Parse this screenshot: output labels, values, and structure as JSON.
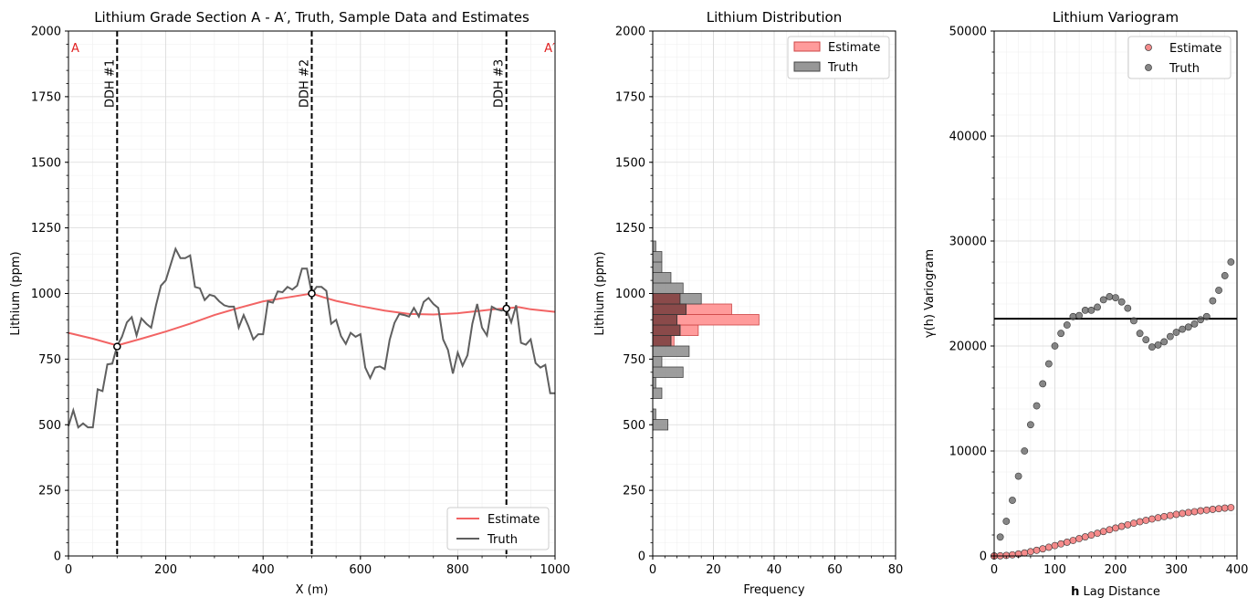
{
  "colors": {
    "estimate": "#f26464",
    "truth": "#5f5f5f",
    "estimate_hist": "#ff9b9b",
    "truth_hist": "#8c8c8c",
    "drill": "#000000",
    "section_label": "#e02020"
  },
  "chart_data": [
    {
      "type": "line",
      "title": "Lithium Grade Section A - A′, Truth, Sample Data and Estimates",
      "xlabel": "X (m)",
      "ylabel": "Lithium (ppm)",
      "xlim": [
        0,
        1000
      ],
      "ylim": [
        0,
        2000
      ],
      "xticks": [
        "0",
        "200",
        "400",
        "600",
        "800",
        "1000"
      ],
      "yticks": [
        "0",
        "250",
        "500",
        "750",
        "1000",
        "1250",
        "1500",
        "1750",
        "2000"
      ],
      "section_labels": {
        "left": "A",
        "right": "A′"
      },
      "legend": {
        "position": "lower right",
        "entries": [
          "Estimate",
          "Truth"
        ]
      },
      "drillholes": [
        {
          "label": "DDH #1",
          "x": 100,
          "sample": 798
        },
        {
          "label": "DDH #2",
          "x": 500,
          "sample": 1000
        },
        {
          "label": "DDH #3",
          "x": 900,
          "sample": 943
        }
      ],
      "series": [
        {
          "name": "Estimate",
          "x": [
            0,
            50,
            100,
            150,
            200,
            250,
            300,
            350,
            400,
            450,
            500,
            525,
            550,
            600,
            650,
            700,
            750,
            800,
            850,
            875,
            900,
            925,
            950,
            1000
          ],
          "y": [
            850,
            828,
            802,
            828,
            855,
            885,
            918,
            945,
            970,
            985,
            1000,
            985,
            972,
            952,
            935,
            922,
            920,
            925,
            935,
            940,
            943,
            948,
            940,
            930
          ]
        },
        {
          "name": "Truth",
          "x": [
            0,
            10,
            20,
            30,
            40,
            50,
            60,
            70,
            80,
            90,
            100,
            110,
            120,
            130,
            140,
            150,
            160,
            170,
            180,
            190,
            200,
            210,
            220,
            230,
            240,
            250,
            260,
            270,
            280,
            290,
            300,
            310,
            320,
            330,
            340,
            350,
            360,
            370,
            380,
            390,
            400,
            410,
            420,
            430,
            440,
            450,
            460,
            470,
            480,
            490,
            500,
            510,
            520,
            530,
            540,
            550,
            560,
            570,
            580,
            590,
            600,
            610,
            620,
            630,
            640,
            650,
            660,
            670,
            680,
            690,
            700,
            710,
            720,
            730,
            740,
            750,
            760,
            770,
            780,
            790,
            800,
            810,
            820,
            830,
            840,
            850,
            860,
            870,
            880,
            890,
            900,
            910,
            920,
            930,
            940,
            950,
            960,
            970,
            980,
            990,
            1000
          ],
          "y": [
            495,
            555,
            490,
            505,
            490,
            490,
            635,
            628,
            730,
            733,
            800,
            835,
            890,
            910,
            840,
            905,
            885,
            870,
            955,
            1030,
            1050,
            1110,
            1170,
            1135,
            1135,
            1145,
            1025,
            1020,
            975,
            995,
            990,
            970,
            955,
            950,
            950,
            870,
            918,
            875,
            825,
            845,
            845,
            970,
            965,
            1008,
            1005,
            1025,
            1015,
            1030,
            1095,
            1095,
            1000,
            1025,
            1025,
            1010,
            885,
            900,
            838,
            808,
            850,
            835,
            845,
            718,
            678,
            718,
            722,
            712,
            823,
            888,
            922,
            918,
            912,
            945,
            912,
            968,
            983,
            960,
            945,
            825,
            785,
            695,
            775,
            725,
            765,
            885,
            960,
            870,
            840,
            950,
            940,
            935,
            940,
            890,
            955,
            812,
            805,
            825,
            735,
            718,
            728,
            620,
            620
          ]
        }
      ]
    },
    {
      "type": "bar",
      "orientation": "horizontal",
      "title": "Lithium Distribution",
      "xlabel": "Frequency",
      "ylabel": "Lithium (ppm)",
      "xlim": [
        0,
        80
      ],
      "ylim": [
        0,
        2000
      ],
      "xticks": [
        "0",
        "20",
        "40",
        "60",
        "80"
      ],
      "yticks": [
        "0",
        "250",
        "500",
        "750",
        "1000",
        "1250",
        "1500",
        "1750",
        "2000"
      ],
      "bin_width": 40,
      "legend": {
        "position": "upper right",
        "entries": [
          "Estimate",
          "Truth"
        ]
      },
      "series": [
        {
          "name": "Estimate",
          "bin_lower": [
            800,
            840,
            880,
            920,
            960
          ],
          "counts": [
            7,
            15,
            35,
            26,
            9
          ]
        },
        {
          "name": "Truth",
          "bin_lower": [
            480,
            520,
            600,
            640,
            680,
            720,
            760,
            800,
            840,
            880,
            920,
            960,
            1000,
            1040,
            1080,
            1120,
            1160
          ],
          "counts": [
            5,
            1,
            3,
            1,
            10,
            3,
            12,
            6,
            9,
            8,
            11,
            16,
            10,
            6,
            3,
            3,
            1
          ]
        }
      ]
    },
    {
      "type": "scatter",
      "title": "Lithium Variogram",
      "xlabel": "Lag Distance",
      "xlabel_bold_prefix": "h",
      "ylabel": "γ(h) Variogram",
      "xlim": [
        0,
        400
      ],
      "ylim": [
        0,
        50000
      ],
      "xticks": [
        "0",
        "100",
        "200",
        "300",
        "400"
      ],
      "yticks": [
        "0",
        "10000",
        "20000",
        "30000",
        "40000",
        "50000"
      ],
      "sill": 22600,
      "legend": {
        "position": "upper right",
        "entries": [
          "Estimate",
          "Truth"
        ]
      },
      "series": [
        {
          "name": "Estimate",
          "x": [
            0,
            10,
            20,
            30,
            40,
            50,
            60,
            70,
            80,
            90,
            100,
            110,
            120,
            130,
            140,
            150,
            160,
            170,
            180,
            190,
            200,
            210,
            220,
            230,
            240,
            250,
            260,
            270,
            280,
            290,
            300,
            310,
            320,
            330,
            340,
            350,
            360,
            370,
            380,
            390
          ],
          "y": [
            0,
            15,
            50,
            110,
            190,
            290,
            410,
            540,
            680,
            830,
            990,
            1150,
            1310,
            1480,
            1650,
            1820,
            1990,
            2160,
            2330,
            2500,
            2660,
            2820,
            2970,
            3120,
            3260,
            3390,
            3520,
            3640,
            3750,
            3860,
            3960,
            4050,
            4140,
            4220,
            4300,
            4370,
            4440,
            4500,
            4560,
            4610
          ]
        },
        {
          "name": "Truth",
          "x": [
            0,
            10,
            20,
            30,
            40,
            50,
            60,
            70,
            80,
            90,
            100,
            110,
            120,
            130,
            140,
            150,
            160,
            170,
            180,
            190,
            200,
            210,
            220,
            230,
            240,
            250,
            260,
            270,
            280,
            290,
            300,
            310,
            320,
            330,
            340,
            350,
            360,
            370,
            380,
            390
          ],
          "y": [
            0,
            1800,
            3300,
            5300,
            7600,
            10000,
            12500,
            14300,
            16400,
            18300,
            20000,
            21200,
            22000,
            22800,
            22900,
            23400,
            23400,
            23700,
            24400,
            24700,
            24600,
            24200,
            23600,
            22400,
            21200,
            20600,
            19900,
            20100,
            20400,
            20900,
            21300,
            21600,
            21800,
            22100,
            22500,
            22800,
            24300,
            25300,
            26700,
            28000
          ]
        }
      ]
    }
  ]
}
